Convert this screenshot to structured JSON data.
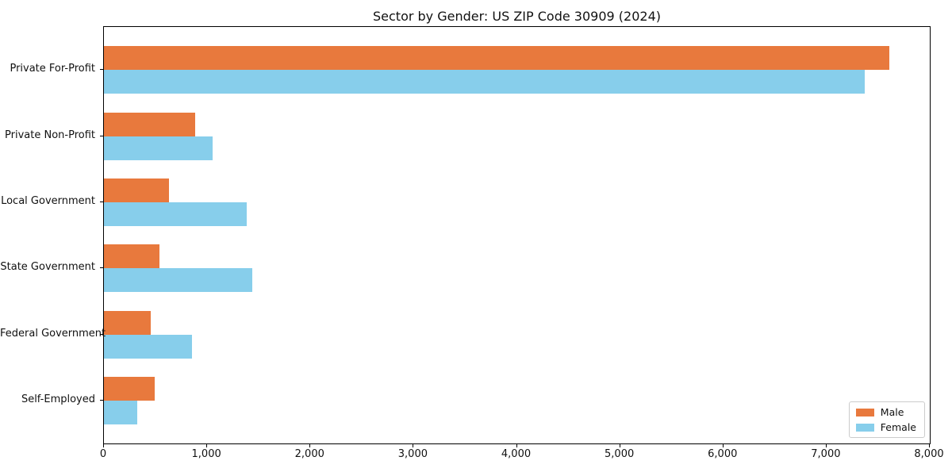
{
  "figure": {
    "background": "#ffffff",
    "axes_border_color": "#000000",
    "text_color": "#111111"
  },
  "chart_data": {
    "type": "bar",
    "orientation": "horizontal",
    "title": "Sector by Gender: US ZIP Code 30909 (2024)",
    "categories": [
      "Private For-Profit",
      "Private Non-Profit",
      "Local Government",
      "State Government",
      "Federal Government",
      "Self-Employed"
    ],
    "series": [
      {
        "name": "Male",
        "color": "#e8793d",
        "values": [
          7610,
          880,
          630,
          535,
          450,
          490
        ]
      },
      {
        "name": "Female",
        "color": "#87ceeb",
        "values": [
          7370,
          1050,
          1385,
          1435,
          850,
          320
        ]
      }
    ],
    "xlabel": "",
    "ylabel": "",
    "xlim": [
      0,
      8000
    ],
    "xticks": [
      0,
      1000,
      2000,
      3000,
      4000,
      5000,
      6000,
      7000,
      8000
    ],
    "xtick_labels": [
      "0",
      "1,000",
      "2,000",
      "3,000",
      "4,000",
      "5,000",
      "6,000",
      "7,000",
      "8,000"
    ],
    "grid": false,
    "legend": {
      "position": "lower right",
      "entries": [
        "Male",
        "Female"
      ]
    }
  }
}
